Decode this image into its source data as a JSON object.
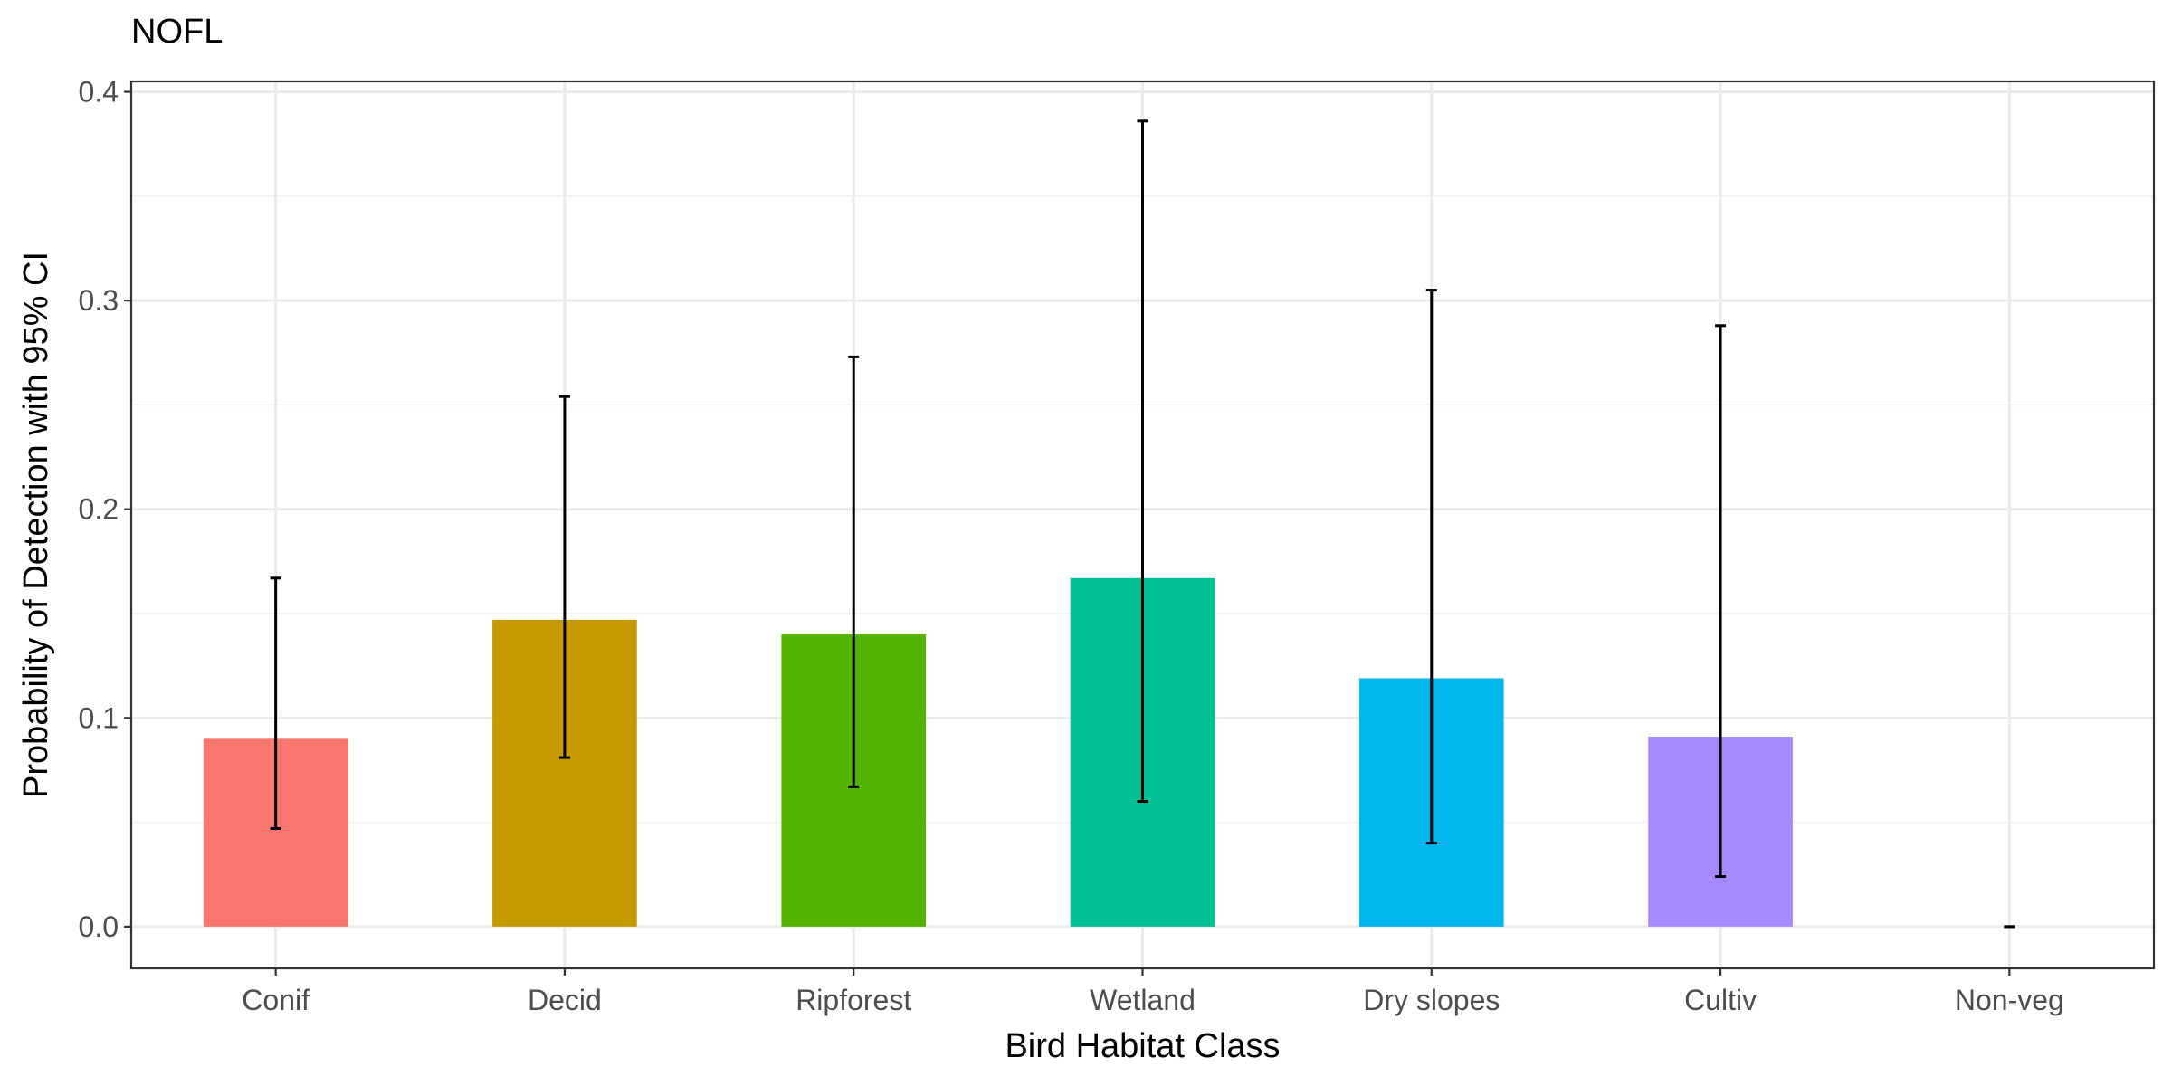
{
  "chart_data": {
    "type": "bar",
    "title": "NOFL",
    "xlabel": "Bird Habitat Class",
    "ylabel": "Probability of Detection with 95% CI",
    "categories": [
      "Conif",
      "Decid",
      "Ripforest",
      "Wetland",
      "Dry slopes",
      "Cultiv",
      "Non-veg"
    ],
    "values": [
      0.09,
      0.147,
      0.14,
      0.167,
      0.119,
      0.091,
      0.0
    ],
    "ci_lower": [
      0.047,
      0.081,
      0.067,
      0.06,
      0.04,
      0.024,
      0.0
    ],
    "ci_upper": [
      0.167,
      0.254,
      0.273,
      0.386,
      0.305,
      0.288,
      0.0
    ],
    "colors": [
      "#F8766D",
      "#C49A00",
      "#53B400",
      "#00C094",
      "#00B6EB",
      "#A58AFF",
      "#FB61D7"
    ],
    "ylim": [
      -0.02,
      0.405
    ],
    "yticks": [
      0.0,
      0.1,
      0.2,
      0.3,
      0.4
    ],
    "ytick_labels": [
      "0.0",
      "0.1",
      "0.2",
      "0.3",
      "0.4"
    ],
    "grid": true,
    "legend": "none"
  }
}
